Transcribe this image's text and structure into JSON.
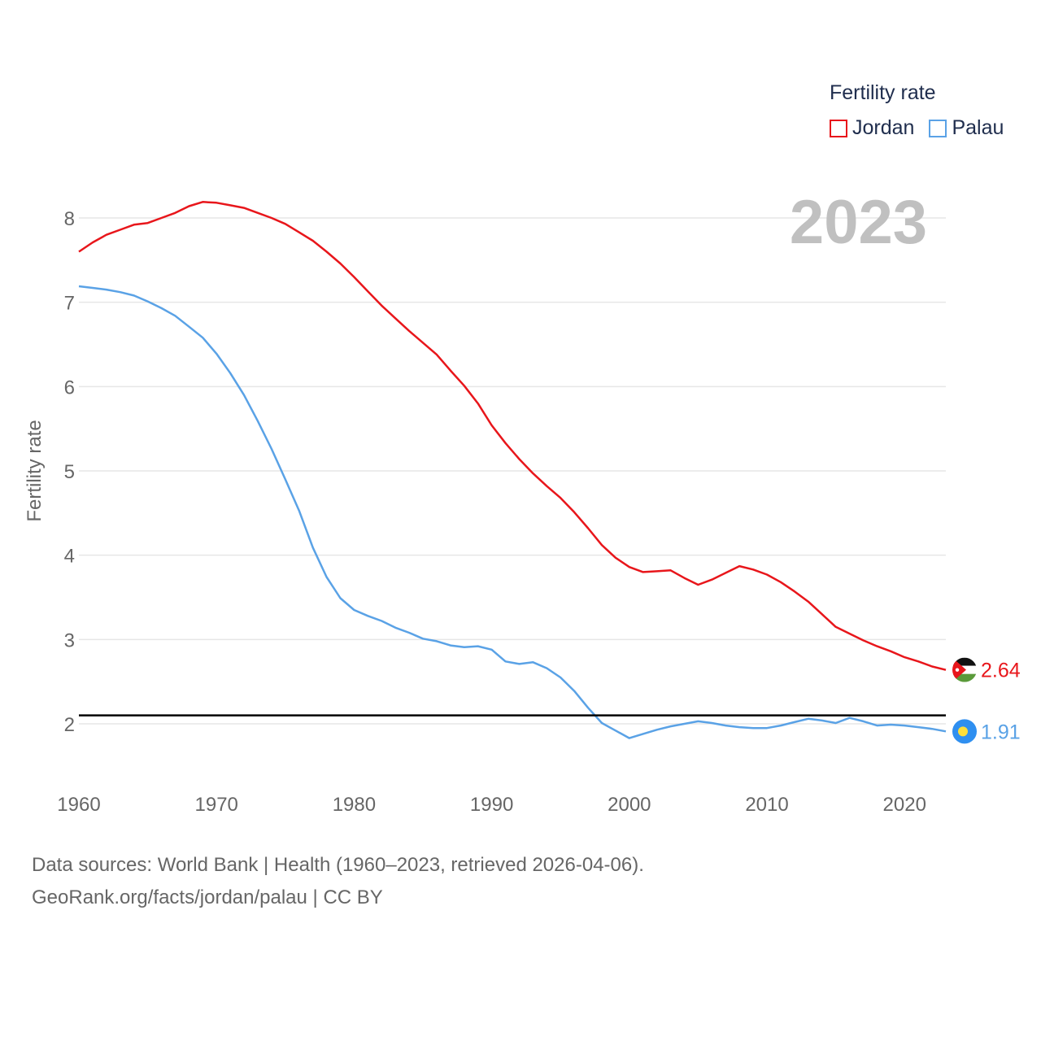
{
  "legend": {
    "title": "Fertility rate",
    "items": [
      {
        "label": "Jordan",
        "color": "#e8161b"
      },
      {
        "label": "Palau",
        "color": "#5aa2e6"
      }
    ]
  },
  "footer": {
    "line1": "Data sources: World Bank | Health (1960–2023, retrieved 2026-04-06).",
    "line2": "GeoRank.org/facts/jordan/palau | CC BY"
  },
  "chart_data": {
    "type": "line",
    "title": "Fertility rate",
    "year_label": "2023",
    "xlabel": "",
    "ylabel": "Fertility rate",
    "xlim": [
      1960,
      2023
    ],
    "ylim": [
      1.5,
      8.6
    ],
    "xticks": [
      1960,
      1970,
      1980,
      1990,
      2000,
      2010,
      2020
    ],
    "yticks": [
      2,
      3,
      4,
      5,
      6,
      7,
      8
    ],
    "reference_line": 2.1,
    "series": [
      {
        "name": "Jordan",
        "color": "#e8161b",
        "end_label": "2.64",
        "x": [
          1960,
          1961,
          1962,
          1963,
          1964,
          1965,
          1966,
          1967,
          1968,
          1969,
          1970,
          1971,
          1972,
          1973,
          1974,
          1975,
          1976,
          1977,
          1978,
          1979,
          1980,
          1981,
          1982,
          1983,
          1984,
          1985,
          1986,
          1987,
          1988,
          1989,
          1990,
          1991,
          1992,
          1993,
          1994,
          1995,
          1996,
          1997,
          1998,
          1999,
          2000,
          2001,
          2002,
          2003,
          2004,
          2005,
          2006,
          2007,
          2008,
          2009,
          2010,
          2011,
          2012,
          2013,
          2014,
          2015,
          2016,
          2017,
          2018,
          2019,
          2020,
          2021,
          2022,
          2023
        ],
        "values": [
          7.6,
          7.71,
          7.8,
          7.86,
          7.92,
          7.94,
          8.0,
          8.06,
          8.14,
          8.19,
          8.18,
          8.15,
          8.12,
          8.06,
          8.0,
          7.93,
          7.83,
          7.73,
          7.6,
          7.46,
          7.3,
          7.13,
          6.96,
          6.81,
          6.66,
          6.52,
          6.38,
          6.19,
          6.01,
          5.8,
          5.54,
          5.33,
          5.14,
          4.97,
          4.82,
          4.68,
          4.51,
          4.32,
          4.12,
          3.97,
          3.86,
          3.8,
          3.81,
          3.82,
          3.73,
          3.65,
          3.71,
          3.79,
          3.87,
          3.83,
          3.77,
          3.68,
          3.57,
          3.45,
          3.3,
          3.15,
          3.07,
          2.99,
          2.92,
          2.86,
          2.79,
          2.74,
          2.68,
          2.64
        ]
      },
      {
        "name": "Palau",
        "color": "#5aa2e6",
        "end_label": "1.91",
        "x": [
          1960,
          1961,
          1962,
          1963,
          1964,
          1965,
          1966,
          1967,
          1968,
          1969,
          1970,
          1971,
          1972,
          1973,
          1974,
          1975,
          1976,
          1977,
          1978,
          1979,
          1980,
          1981,
          1982,
          1983,
          1984,
          1985,
          1986,
          1987,
          1988,
          1989,
          1990,
          1991,
          1992,
          1993,
          1994,
          1995,
          1996,
          1997,
          1998,
          1999,
          2000,
          2001,
          2002,
          2003,
          2004,
          2005,
          2006,
          2007,
          2008,
          2009,
          2010,
          2011,
          2012,
          2013,
          2014,
          2015,
          2016,
          2017,
          2018,
          2019,
          2020,
          2021,
          2022,
          2023
        ],
        "values": [
          7.19,
          7.17,
          7.15,
          7.12,
          7.08,
          7.01,
          6.93,
          6.84,
          6.71,
          6.58,
          6.39,
          6.16,
          5.9,
          5.59,
          5.26,
          4.9,
          4.53,
          4.09,
          3.74,
          3.49,
          3.35,
          3.28,
          3.22,
          3.14,
          3.08,
          3.01,
          2.98,
          2.93,
          2.91,
          2.92,
          2.88,
          2.74,
          2.71,
          2.73,
          2.66,
          2.55,
          2.39,
          2.19,
          2.01,
          1.92,
          1.83,
          1.88,
          1.93,
          1.97,
          2.0,
          2.03,
          2.01,
          1.98,
          1.96,
          1.95,
          1.95,
          1.98,
          2.02,
          2.06,
          2.04,
          2.01,
          2.07,
          2.03,
          1.98,
          1.99,
          1.98,
          1.96,
          1.94,
          1.91
        ]
      }
    ]
  }
}
